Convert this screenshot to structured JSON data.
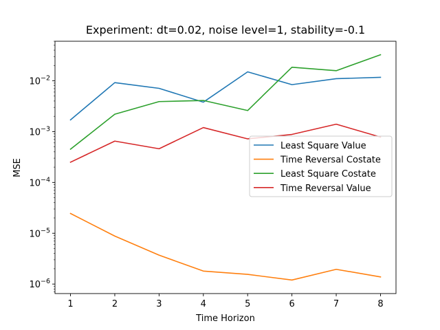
{
  "chart_data": {
    "type": "line",
    "title": "Experiment: dt=0.02, noise level=1, stability=-0.1",
    "xlabel": "Time Horizon",
    "ylabel": "MSE",
    "yscale": "log",
    "xlim": [
      0.65,
      8.35
    ],
    "ylim": [
      6.5e-07,
      0.06
    ],
    "x": [
      1,
      2,
      3,
      4,
      5,
      6,
      7,
      8
    ],
    "x_tick_labels": [
      "1",
      "2",
      "3",
      "4",
      "5",
      "6",
      "7",
      "8"
    ],
    "y_ticks": [
      1e-06,
      1e-05,
      0.0001,
      0.001,
      0.01
    ],
    "y_tick_labels": [
      {
        "base": "10",
        "exp": "−6"
      },
      {
        "base": "10",
        "exp": "−5"
      },
      {
        "base": "10",
        "exp": "−4"
      },
      {
        "base": "10",
        "exp": "−3"
      },
      {
        "base": "10",
        "exp": "−2"
      }
    ],
    "grid": false,
    "legend_position": "center-right",
    "series": [
      {
        "name": "Least Square Value",
        "color": "#1f77b4",
        "values": [
          0.0017,
          0.0092,
          0.0071,
          0.0038,
          0.015,
          0.0084,
          0.011,
          0.0117
        ]
      },
      {
        "name": "Time Reversal Costate",
        "color": "#ff7f0e",
        "values": [
          2.45e-05,
          8.8e-06,
          3.7e-06,
          1.8e-06,
          1.55e-06,
          1.2e-06,
          1.95e-06,
          1.38e-06
        ]
      },
      {
        "name": "Least Square Costate",
        "color": "#2ca02c",
        "values": [
          0.00045,
          0.0022,
          0.0039,
          0.0041,
          0.0026,
          0.0185,
          0.0158,
          0.0325
        ]
      },
      {
        "name": "Time Reversal Value",
        "color": "#d62728",
        "values": [
          0.00025,
          0.00065,
          0.00046,
          0.0012,
          0.00072,
          0.00088,
          0.0014,
          0.00078
        ]
      }
    ]
  }
}
